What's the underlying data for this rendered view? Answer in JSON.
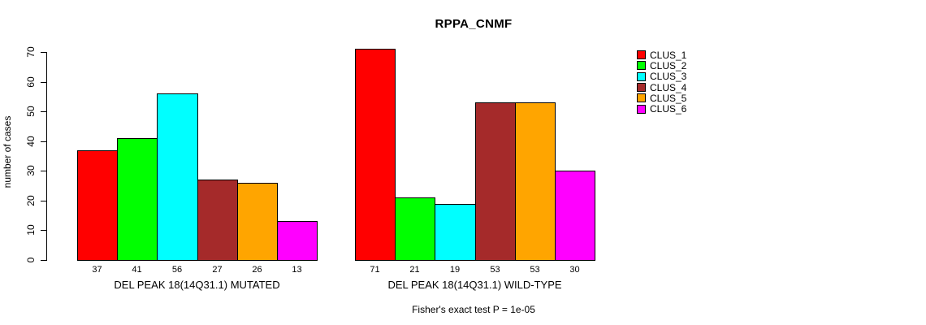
{
  "title": "RPPA_CNMF",
  "chart_data": {
    "type": "bar",
    "title": "RPPA_CNMF",
    "subtitle": "Fisher's exact test P = 1e-05",
    "xlabel": "",
    "ylabel": "number of cases",
    "ylim": [
      0,
      70
    ],
    "yticks": [
      0,
      10,
      20,
      30,
      40,
      50,
      60,
      70
    ],
    "grid": false,
    "legend_position": "right",
    "bar_border_color": "#000000",
    "background_color": "#ffffff",
    "categories": [
      "DEL PEAK 18(14Q31.1) MUTATED",
      "DEL PEAK 18(14Q31.1) WILD-TYPE"
    ],
    "series": [
      {
        "name": "CLUS_1",
        "color": "#FF0000",
        "values": [
          37,
          71
        ]
      },
      {
        "name": "CLUS_2",
        "color": "#00FF00",
        "values": [
          41,
          21
        ]
      },
      {
        "name": "CLUS_3",
        "color": "#00FFFF",
        "values": [
          56,
          19
        ]
      },
      {
        "name": "CLUS_4",
        "color": "#A52A2A",
        "values": [
          27,
          53
        ]
      },
      {
        "name": "CLUS_5",
        "color": "#FFA500",
        "values": [
          26,
          53
        ]
      },
      {
        "name": "CLUS_6",
        "color": "#FF00FF",
        "values": [
          13,
          30
        ]
      }
    ],
    "value_labels": {
      "shown": true,
      "per_category": [
        [
          "37",
          "41",
          "56",
          "27",
          "26",
          "13"
        ],
        [
          "71",
          "21",
          "19",
          "53",
          "53",
          "30"
        ]
      ]
    }
  }
}
